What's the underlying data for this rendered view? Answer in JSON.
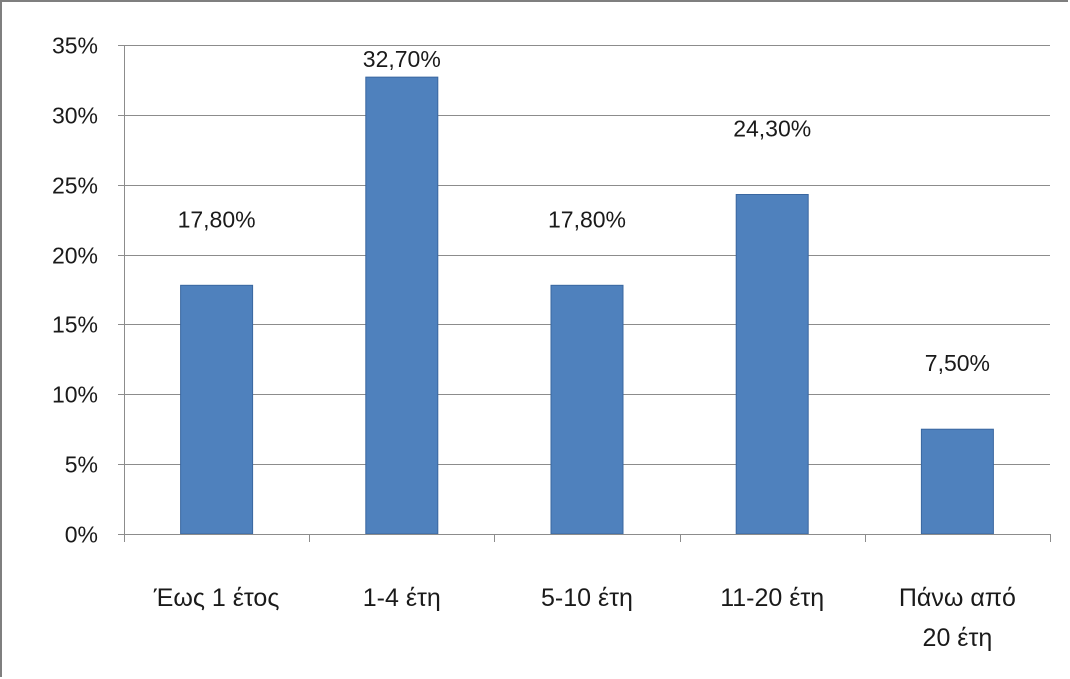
{
  "chart_data": {
    "type": "bar",
    "title": "",
    "xlabel": "",
    "ylabel": "",
    "categories": [
      [
        "Έως 1 έτος"
      ],
      [
        "1-4 έτη"
      ],
      [
        "5-10 έτη"
      ],
      [
        "11-20 έτη"
      ],
      [
        "Πάνω από",
        "20 έτη"
      ]
    ],
    "values": [
      17.8,
      32.7,
      17.8,
      24.3,
      7.5
    ],
    "data_labels": [
      "17,80%",
      "32,70%",
      "17,80%",
      "24,30%",
      "7,50%"
    ],
    "ylim": [
      0,
      35
    ],
    "y_ticks": [
      0,
      5,
      10,
      15,
      20,
      25,
      30,
      35
    ],
    "y_tick_labels": [
      "0%",
      "5%",
      "10%",
      "15%",
      "20%",
      "25%",
      "30%",
      "35%"
    ],
    "grid": true,
    "legend": "none",
    "colors": {
      "bar": "#4f81bd",
      "bar_edge": "#3a67a0",
      "gridline": "#8c8c8c",
      "axis": "#8c8c8c",
      "text": "#1a1a1a"
    }
  }
}
